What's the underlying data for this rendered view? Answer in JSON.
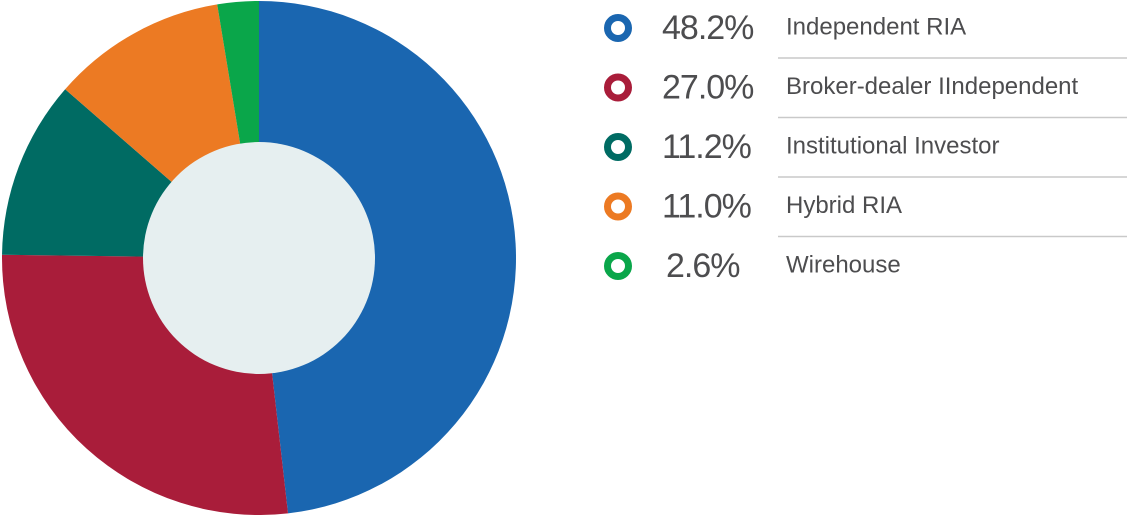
{
  "chart_data": {
    "type": "donut",
    "categories": [
      "Independent RIA",
      "Broker-dealer IIndependent",
      "Institutional Investor",
      "Hybrid RIA",
      "Wirehouse"
    ],
    "values": [
      48.2,
      27.0,
      11.2,
      11.0,
      2.6
    ],
    "value_labels": [
      "48.2%",
      "27.0%",
      "11.2%",
      "11.0%",
      "2.6%"
    ],
    "colors": [
      "#1a66b0",
      "#a91d3a",
      "#006b63",
      "#ec7a23",
      "#0aa64a"
    ]
  }
}
